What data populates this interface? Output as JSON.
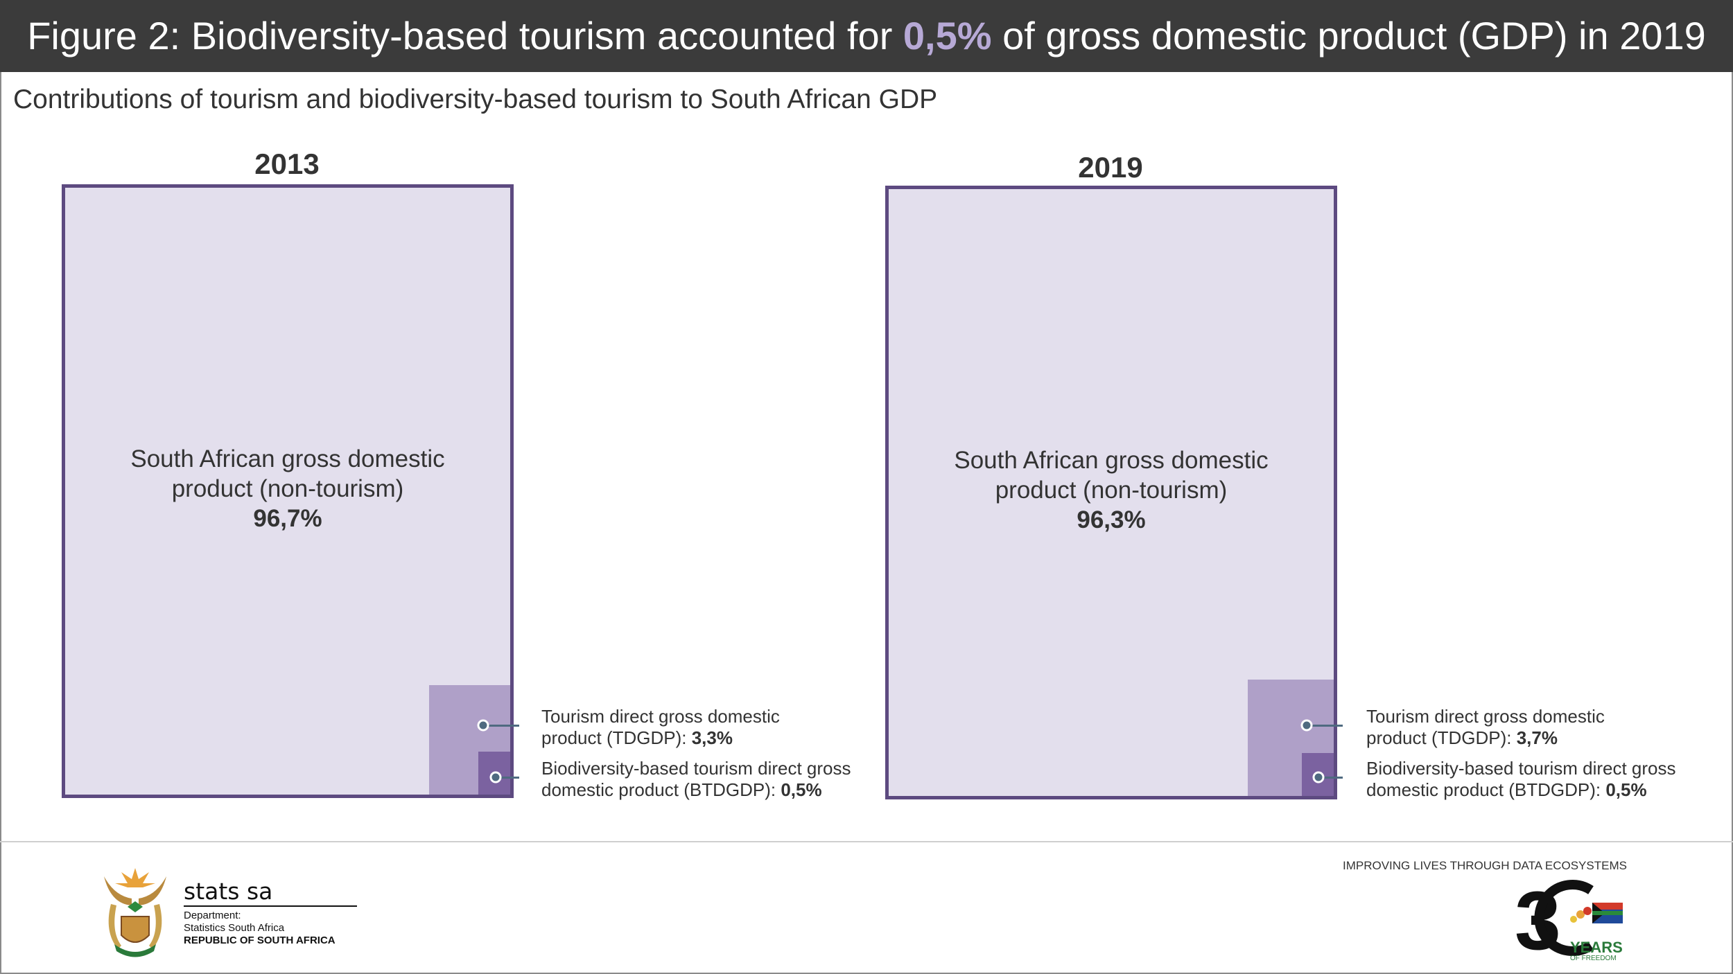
{
  "header": {
    "title_before": "Figure 2: Biodiversity-based tourism accounted for ",
    "title_highlight": "0,5%",
    "title_after": " of gross domestic product (GDP) in 2019",
    "subtitle": "Contributions of tourism and biodiversity-based tourism to South African GDP"
  },
  "colors": {
    "header_bg": "#3b3b3b",
    "highlight": "#b7a9d6",
    "non_tourism": "#e3dfed",
    "tdgdp": "#afa0c8",
    "btdgdp": "#7b62a0",
    "border": "#5d4a80"
  },
  "chart_data": {
    "type": "treemap",
    "title": "Contributions of tourism and biodiversity-based tourism to South African GDP",
    "unit": "% of GDP",
    "panels": [
      {
        "year": "2013",
        "non_tourism_label_1": "South African gross domestic",
        "non_tourism_label_2": "product (non-tourism)",
        "non_tourism_value": "96,7%",
        "non_tourism": 96.7,
        "td_label_1": "Tourism direct gross domestic",
        "td_label_2": "product (TDGDP): ",
        "td_value": "3,3%",
        "tdgdp": 3.3,
        "btd_label_1": "Biodiversity-based tourism direct gross",
        "btd_label_2": "domestic product (BTDGDP): ",
        "btd_value": "0,5%",
        "btdgdp": 0.5
      },
      {
        "year": "2019",
        "non_tourism_label_1": "South African gross domestic",
        "non_tourism_label_2": "product (non-tourism)",
        "non_tourism_value": "96,3%",
        "non_tourism": 96.3,
        "td_label_1": "Tourism direct gross domestic",
        "td_label_2": "product (TDGDP): ",
        "td_value": "3,7%",
        "tdgdp": 3.7,
        "btd_label_1": "Biodiversity-based tourism direct gross",
        "btd_label_2": "domestic product (BTDGDP): ",
        "btd_value": "0,5%",
        "btdgdp": 0.5
      }
    ]
  },
  "footer": {
    "org_name": "stats sa",
    "dept_line1": "Department:",
    "dept_line2": "Statistics South Africa",
    "dept_line3": "REPUBLIC OF SOUTH AFRICA",
    "tagline": "IMPROVING LIVES THROUGH DATA ECOSYSTEMS",
    "anniversary_logo": "30 YEARS OF FREEDOM South Africa 1994 - 2024"
  }
}
